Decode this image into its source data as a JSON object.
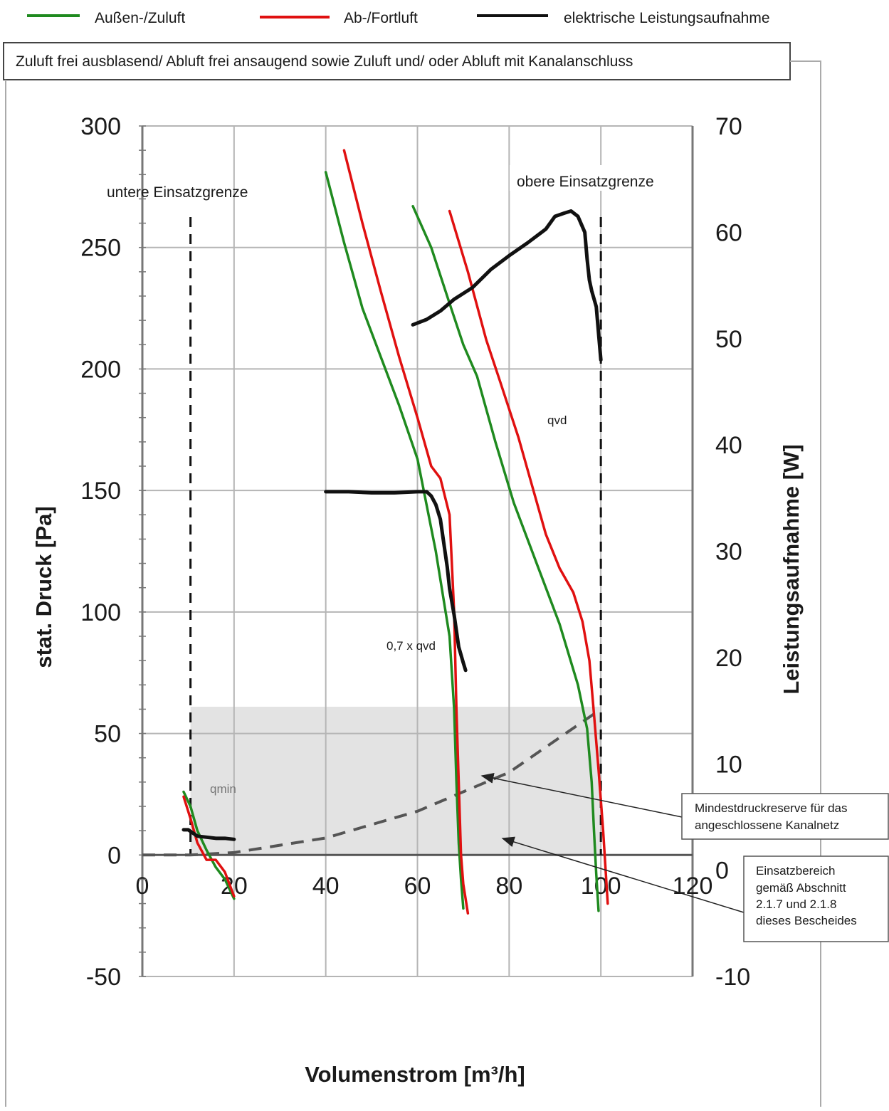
{
  "legend": [
    {
      "label": "Außen-/Zuluft",
      "color": "#1f8a1f"
    },
    {
      "label": "Ab-/Fortluft",
      "color": "#e01010"
    },
    {
      "label": "elektrische Leistungsaufnahme",
      "color": "#111111"
    }
  ],
  "caption": "Zuluft frei ausblasend/ Abluft frei ansaugend sowie Zuluft und/ oder Abluft mit Kanalanschluss",
  "annotations": {
    "lower_limit": "untere Einsatzgrenze",
    "upper_limit": "obere Einsatzgrenze",
    "qvd": "qvd",
    "qvd_07": "0,7 x qvd",
    "qmin": "qmin",
    "pressure_reserve": [
      "Mindestdruckreserve für das",
      "angeschlossene Kanalnetz"
    ],
    "operating_range": [
      "Einsatzbereich",
      "gemäß Abschnitt",
      "2.1.7 und 2.1.8",
      "dieses Bescheides"
    ]
  },
  "chart_data": {
    "type": "line",
    "xlabel": "Volumenstrom [m³/h]",
    "ylabel": "stat. Druck [Pa]",
    "y2label": "Leistungsaufnahme [W]",
    "xlim": [
      0,
      120
    ],
    "ylim": [
      -50,
      300
    ],
    "y2lim": [
      -10,
      70
    ],
    "x_ticks": [
      0,
      20,
      40,
      60,
      80,
      100,
      120
    ],
    "y_ticks": [
      -50,
      0,
      50,
      100,
      150,
      200,
      250,
      300
    ],
    "y2_ticks": [
      -10,
      0,
      10,
      20,
      30,
      40,
      50,
      60,
      70
    ],
    "grid": true,
    "limits": {
      "lower_x": 10.5,
      "upper_x": 100
    },
    "operating_area": {
      "x": [
        10.5,
        100
      ],
      "y": [
        0,
        61
      ]
    },
    "pressure_reserve_curve": {
      "x": [
        0,
        10.5,
        20,
        40,
        60,
        80,
        100
      ],
      "y": [
        0,
        0,
        1,
        7,
        18,
        34,
        60
      ]
    },
    "series": [
      {
        "name": "Außen-/Zuluft",
        "group": "supply",
        "x": [
          40,
          44,
          48,
          52,
          56,
          60,
          64,
          67,
          68,
          68.5,
          69,
          69.5,
          70
        ],
        "y": [
          281,
          252,
          225,
          205,
          185,
          163,
          125,
          90,
          60,
          30,
          5,
          -10,
          -22
        ]
      },
      {
        "name": "Außen-/Zuluft",
        "group": "supply",
        "x": [
          59,
          63,
          67,
          70,
          73,
          77,
          81,
          86,
          91,
          95,
          97,
          98,
          98.5,
          99,
          99.5
        ],
        "y": [
          267,
          250,
          227,
          210,
          197,
          170,
          145,
          120,
          95,
          70,
          52,
          30,
          10,
          -8,
          -23
        ]
      },
      {
        "name": "Außen-/Zuluft",
        "group": "supply",
        "x": [
          9,
          10.5,
          12,
          14,
          16,
          18,
          20
        ],
        "y": [
          26,
          20,
          10,
          2,
          -5,
          -10,
          -18
        ]
      },
      {
        "name": "Ab-/Fortluft",
        "group": "exhaust",
        "x": [
          44,
          48,
          52,
          56,
          60,
          63,
          65,
          67,
          68,
          68.5,
          69,
          69.5,
          70,
          71
        ],
        "y": [
          290,
          260,
          232,
          205,
          180,
          160,
          155,
          140,
          100,
          60,
          30,
          0,
          -12,
          -24
        ]
      },
      {
        "name": "Ab-/Fortluft",
        "group": "exhaust",
        "x": [
          67,
          71,
          75,
          78,
          82,
          85,
          88,
          91,
          94,
          96,
          97.5,
          98.5,
          99.5,
          100.5,
          101.5
        ],
        "y": [
          265,
          240,
          212,
          195,
          172,
          152,
          132,
          118,
          108,
          96,
          80,
          58,
          35,
          10,
          -20
        ]
      },
      {
        "name": "Ab-/Fortluft",
        "group": "exhaust",
        "x": [
          9,
          10.5,
          12,
          14,
          16,
          18,
          20
        ],
        "y": [
          24,
          15,
          5,
          -2,
          -2,
          -7,
          -17
        ]
      },
      {
        "name": "elektrische Leistungsaufnahme",
        "group": "power",
        "x": [
          40,
          45,
          50,
          55,
          60,
          62,
          63,
          64,
          65,
          65.5,
          66,
          66.5,
          67,
          68,
          68.5,
          69,
          70,
          70.5
        ],
        "y": [
          35.6,
          35.6,
          35.5,
          35.5,
          35.6,
          35.6,
          35.2,
          34.4,
          33.0,
          31.5,
          30.0,
          28.5,
          26.5,
          24.0,
          22.5,
          21.0,
          19.5,
          18.8
        ]
      },
      {
        "name": "elektrische Leistungsaufnahme",
        "group": "power",
        "x": [
          59,
          62,
          65,
          68,
          72,
          76,
          80,
          84,
          88,
          90,
          92,
          93.5,
          95,
          96.5,
          97,
          97.5,
          98,
          99,
          100
        ],
        "y": [
          51.3,
          51.8,
          52.6,
          53.7,
          54.8,
          56.5,
          57.8,
          59.0,
          60.3,
          61.5,
          61.8,
          62.0,
          61.5,
          60.0,
          57.5,
          55.5,
          54.5,
          53.0,
          48.0
        ]
      },
      {
        "name": "elektrische Leistungsaufnahme",
        "group": "power",
        "x": [
          9,
          10,
          11,
          12,
          14,
          16,
          18,
          20
        ],
        "y": [
          3.8,
          3.8,
          3.5,
          3.2,
          3.1,
          3.0,
          3.0,
          2.9
        ]
      }
    ]
  }
}
